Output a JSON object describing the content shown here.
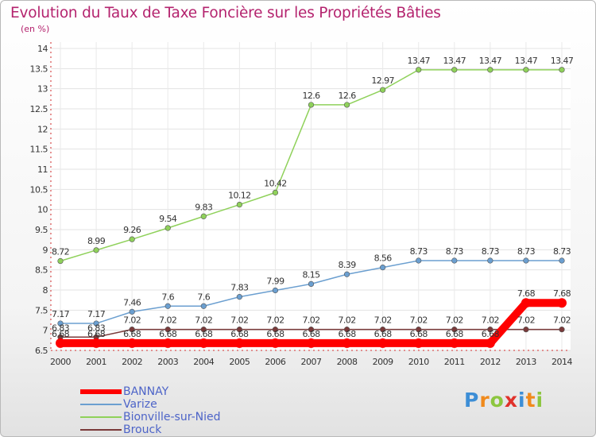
{
  "chart_data": {
    "type": "line",
    "title": "Evolution du Taux de Taxe Foncière sur les Propriétés Bâties",
    "unit_label": "(en %)",
    "xlabel": "",
    "ylabel": "(en %)",
    "x": [
      2000,
      2001,
      2002,
      2003,
      2004,
      2005,
      2006,
      2007,
      2008,
      2009,
      2010,
      2011,
      2012,
      2013,
      2014
    ],
    "x_tick_labels": [
      "2000",
      "2001",
      "2002",
      "2003",
      "2004",
      "2005",
      "2006",
      "2007",
      "2008",
      "2009",
      "2010",
      "2011",
      "2012",
      "2013",
      "2014"
    ],
    "ylim": [
      6.5,
      14
    ],
    "y_ticks": [
      6.5,
      7,
      7.5,
      8,
      8.5,
      9,
      9.5,
      10,
      10.5,
      11,
      11.5,
      12,
      12.5,
      13,
      13.5,
      14
    ],
    "y_tick_labels": [
      "6.5",
      "7",
      "7.5",
      "8",
      "8.5",
      "9",
      "9.5",
      "10",
      "10.5",
      "11",
      "11.5",
      "12",
      "12.5",
      "13",
      "13.5",
      "14"
    ],
    "series": [
      {
        "name": "BANNAY",
        "color": "#ff0000",
        "values": [
          6.68,
          6.68,
          6.68,
          6.68,
          6.68,
          6.68,
          6.68,
          6.68,
          6.68,
          6.68,
          6.68,
          6.68,
          6.68,
          7.68,
          7.68
        ],
        "labels": [
          "6.68",
          "6.68",
          "6.68",
          "6.68",
          "6.68",
          "6.68",
          "6.68",
          "6.68",
          "6.68",
          "6.68",
          "6.68",
          "6.68",
          "6.68",
          "7.68",
          "7.68"
        ]
      },
      {
        "name": "Varize",
        "color": "#6b9fd0",
        "values": [
          7.17,
          7.17,
          7.46,
          7.6,
          7.6,
          7.83,
          7.99,
          8.15,
          8.39,
          8.56,
          8.73,
          8.73,
          8.73,
          8.73,
          8.73
        ],
        "labels": [
          "7.17",
          "7.17",
          "7.46",
          "7.6",
          "7.6",
          "7.83",
          "7.99",
          "8.15",
          "8.39",
          "8.56",
          "8.73",
          "8.73",
          "8.73",
          "8.73",
          "8.73"
        ]
      },
      {
        "name": "Bionville-sur-Nied",
        "color": "#8fd15a",
        "values": [
          8.72,
          8.99,
          9.26,
          9.54,
          9.83,
          10.12,
          10.42,
          12.6,
          12.6,
          12.97,
          13.47,
          13.47,
          13.47,
          13.47,
          13.47
        ],
        "labels": [
          "8.72",
          "8.99",
          "9.26",
          "9.54",
          "9.83",
          "10.12",
          "10.42",
          "12.6",
          "12.6",
          "12.97",
          "13.47",
          "13.47",
          "13.47",
          "13.47",
          "13.47"
        ]
      },
      {
        "name": "Brouck",
        "color": "#7a3a3a",
        "values": [
          6.83,
          6.83,
          7.02,
          7.02,
          7.02,
          7.02,
          7.02,
          7.02,
          7.02,
          7.02,
          7.02,
          7.02,
          7.02,
          7.02,
          7.02
        ],
        "labels": [
          "6.83",
          "6.83",
          "7.02",
          "7.02",
          "7.02",
          "7.02",
          "7.02",
          "7.02",
          "7.02",
          "7.02",
          "7.02",
          "7.02",
          "7.02",
          "7.02",
          "7.02"
        ]
      }
    ]
  },
  "legend": {
    "items": [
      {
        "name": "BANNAY",
        "color": "#ff0000"
      },
      {
        "name": "Varize",
        "color": "#6b9fd0"
      },
      {
        "name": "Bionville-sur-Nied",
        "color": "#8fd15a"
      },
      {
        "name": "Brouck",
        "color": "#7a3a3a"
      }
    ]
  },
  "brand": {
    "text": "Proxiti",
    "letter_colors": [
      "#3d8ed6",
      "#f08a1c",
      "#8cc63f",
      "#e0322b",
      "#3d8ed6",
      "#f08a1c",
      "#8cc63f"
    ]
  }
}
